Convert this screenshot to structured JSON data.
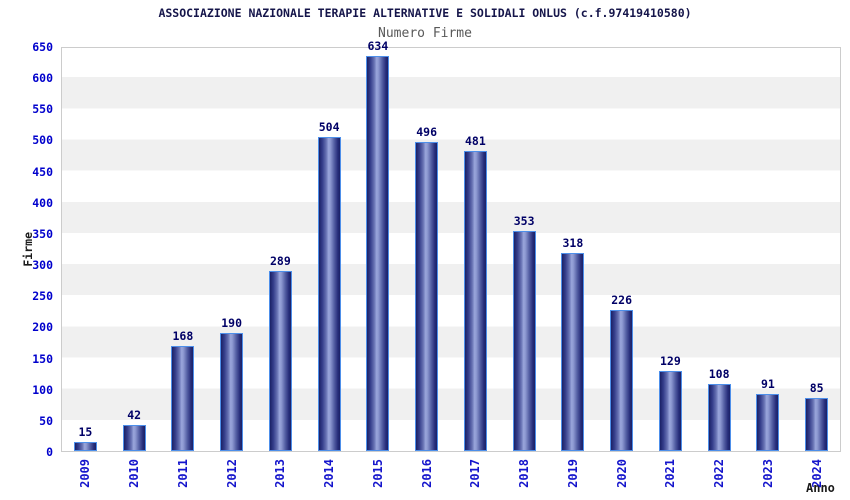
{
  "header": {
    "title": "ASSOCIAZIONE NAZIONALE TERAPIE ALTERNATIVE E SOLIDALI ONLUS (c.f.97419410580)",
    "subtitle": "Numero Firme"
  },
  "chart_data": {
    "type": "bar",
    "title": "Numero Firme",
    "categories": [
      "2009",
      "2010",
      "2011",
      "2012",
      "2013",
      "2014",
      "2015",
      "2016",
      "2017",
      "2018",
      "2019",
      "2020",
      "2021",
      "2022",
      "2023",
      "2024"
    ],
    "values": [
      15,
      42,
      168,
      190,
      289,
      504,
      634,
      496,
      481,
      353,
      318,
      226,
      129,
      108,
      91,
      85
    ],
    "xlabel": "Anno",
    "ylabel": "Firme",
    "ylim": [
      0,
      650
    ],
    "ytick_step": 50,
    "grid": "horizontal-bands-alternating",
    "legend": "none",
    "colors": {
      "title": "#15154a",
      "subtitle": "#595959",
      "axis_tick_label": "#0000cc",
      "bar_value_label": "#000066",
      "bar_dark": "#1b2166",
      "bar_light": "#9aa6dc",
      "bar_edge": "#4d8fea",
      "band_gray": "#f0f0f0",
      "plot_border": "#cccccc"
    }
  }
}
